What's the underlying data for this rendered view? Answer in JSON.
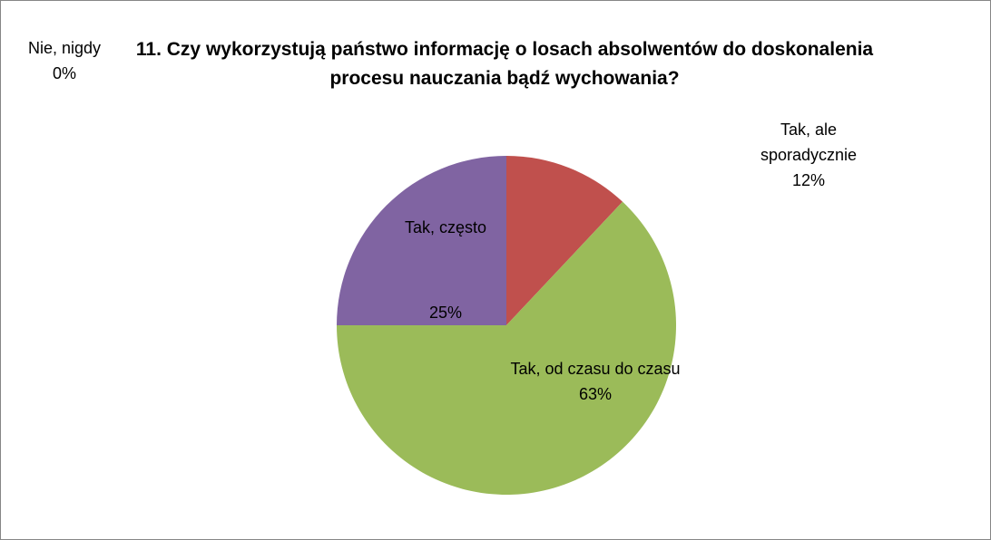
{
  "chart_data": {
    "type": "pie",
    "title": "11. Czy wykorzystują państwo informację o losach absolwentów do doskonalenia procesu nauczania bądź wychowania?",
    "categories": [
      "Nie, nigdy",
      "Tak, ale sporadycznie",
      "Tak, od czasu do czasu",
      "Tak, często"
    ],
    "values": [
      0,
      12,
      63,
      25
    ],
    "value_labels": [
      "0%",
      "12%",
      "63%",
      "25%"
    ],
    "colors": [
      "#4F81BD",
      "#C0504D",
      "#9BBB59",
      "#8064A2"
    ]
  }
}
